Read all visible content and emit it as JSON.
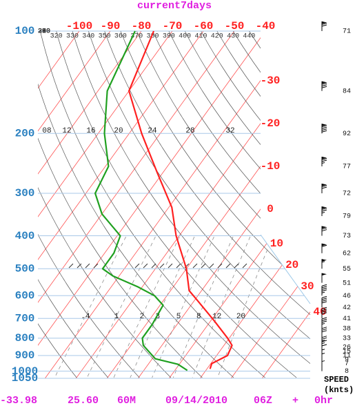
{
  "chart_data": {
    "type": "skewt",
    "title": "current7days",
    "yscale": "log",
    "ylim": [
      100,
      1050
    ],
    "yticks": [
      100,
      200,
      300,
      400,
      500,
      600,
      700,
      800,
      900,
      1000,
      1050
    ],
    "xlim": [
      -100,
      -40
    ],
    "temperature_ticks_top": [
      -100,
      -90,
      -80,
      -70,
      -60,
      -50,
      -40
    ],
    "temperature_ticks_right": [
      -30,
      -20,
      -10,
      0,
      10,
      20,
      30,
      40
    ],
    "theta_labels_top": [
      320,
      330,
      340,
      350,
      360,
      370,
      380,
      390,
      400,
      410,
      420,
      430,
      440
    ],
    "theta_labels_left": [
      310,
      300,
      290,
      280,
      270,
      260,
      250
    ],
    "mixing_ratio_labels": [
      {
        "value": 0.4,
        "label": ".4"
      },
      1,
      2,
      3,
      5,
      8,
      12,
      20
    ],
    "upper_labels": [
      "08",
      "12",
      "16",
      "20",
      "24",
      "28",
      "32"
    ],
    "profiles": [
      {
        "color": "#ff2020",
        "pressure": [
          100,
          150,
          200,
          260,
          330,
          400,
          500,
          580,
          620,
          710,
          800,
          840,
          900,
          950,
          985
        ],
        "values": [
          -76,
          -70,
          -56,
          -42,
          -29,
          -21,
          -10,
          -4,
          1,
          11,
          19.5,
          22.6,
          23.5,
          20.3,
          21
        ]
      },
      {
        "color": "#20a020",
        "pressure": [
          100,
          150,
          200,
          250,
          300,
          345,
          400,
          450,
          500,
          525,
          565,
          600,
          640,
          730,
          800,
          840,
          920,
          955,
          995
        ],
        "values": [
          -82,
          -77,
          -68,
          -59,
          -57,
          -50,
          -39,
          -37,
          -37,
          -32,
          -21.5,
          -14,
          -9,
          -8,
          -8,
          -6,
          1,
          9.6,
          14
        ]
      }
    ],
    "wind": {
      "pressure": [
        100,
        150,
        200,
        250,
        300,
        350,
        400,
        450,
        500,
        550,
        600,
        650,
        700,
        750,
        800,
        850,
        875,
        900,
        925,
        950,
        1000
      ],
      "speed": [
        71,
        84,
        92,
        77,
        72,
        79,
        73,
        62,
        55,
        51,
        46,
        42,
        41,
        38,
        33,
        26,
        15,
        11,
        9,
        7,
        8
      ]
    },
    "speed_label": "SPEED",
    "speed_unit": "(knts)",
    "footer": [
      "-33.98",
      "25.60",
      "60M",
      "09/14/2010",
      "06Z",
      "+",
      "0hr"
    ]
  }
}
